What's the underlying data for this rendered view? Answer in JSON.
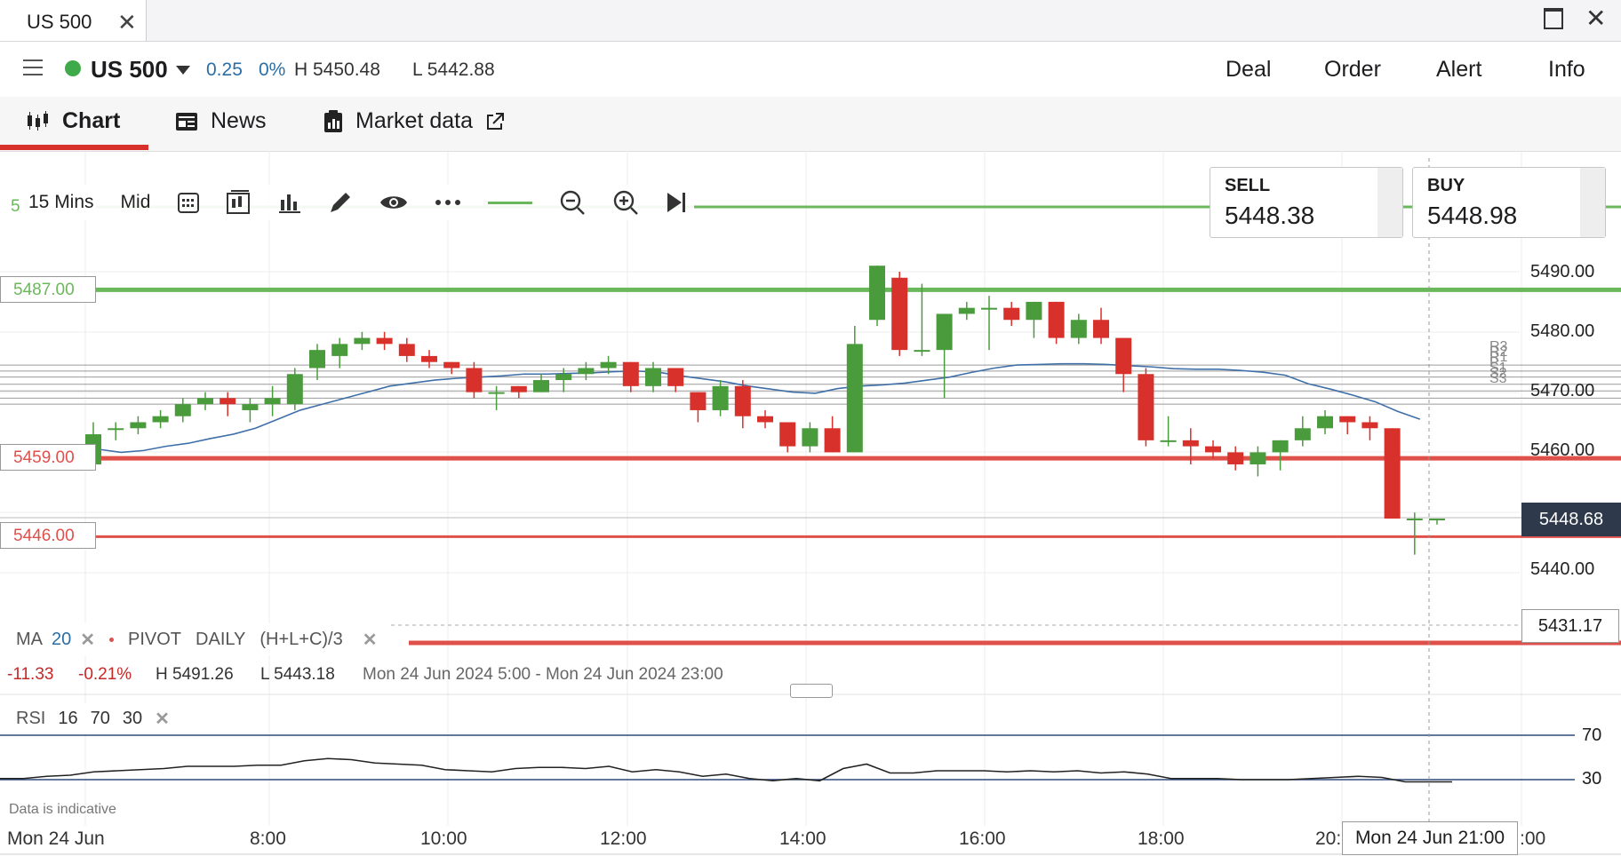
{
  "window": {
    "tab_title": "US 500",
    "close_glyph": "✕",
    "maximize_icon": "maximize-icon",
    "window_close_glyph": "✕"
  },
  "instrument": {
    "name": "US 500",
    "status_color": "#3faa4a",
    "change": "0.25",
    "change_pct": "0%",
    "high": "H 5450.48",
    "low": "L 5442.88"
  },
  "actions": [
    "Deal",
    "Order",
    "Alert",
    "Info"
  ],
  "tabs": [
    {
      "label": "Chart",
      "icon": "candles-icon",
      "active": true
    },
    {
      "label": "News",
      "icon": "news-icon"
    },
    {
      "label": "Market data",
      "icon": "clipboard-icon",
      "external_icon": "external-link-icon"
    }
  ],
  "toolbar": {
    "interval": "15 Mins",
    "price_type": "Mid",
    "icons": [
      "calendar-icon",
      "chart-type-icon",
      "indicators-icon",
      "draw-icon",
      "visibility-icon",
      "more-icon",
      "zoom-out-icon",
      "zoom-in-icon",
      "jump-to-latest-icon"
    ],
    "hidden_level_label": "5"
  },
  "prices": {
    "sell_label": "SELL",
    "sell": "5448.38",
    "buy_label": "BUY",
    "buy": "5448.98",
    "current": "5448.68",
    "low_marker": "5431.17"
  },
  "levels": {
    "upper": "5487.00",
    "mid": "5459.00",
    "lower": "5446.00",
    "green_color": "#6bb85c",
    "red_color": "#e0504a"
  },
  "pivot_labels": [
    "R3",
    "R2",
    "R1",
    "P",
    "S1",
    "S2",
    "S3"
  ],
  "indicator_legend": {
    "ma_label": "MA",
    "ma_period": "20",
    "pivot_label": "PIVOT",
    "pivot_period": "DAILY",
    "pivot_formula": "(H+L+C)/3",
    "remove_glyph": "✕"
  },
  "session_stats": {
    "change": "-11.33",
    "change_pct": "-0.21%",
    "high": "H 5491.26",
    "low": "L 5443.18",
    "range": "Mon 24 Jun 2024 5:00 - Mon 24 Jun 2024 23:00"
  },
  "rsi": {
    "label": "RSI",
    "period": "16",
    "upper": "70",
    "lower": "30",
    "remove_glyph": "✕",
    "values": [
      31,
      31,
      33,
      34,
      37,
      38,
      39,
      40,
      42,
      42,
      42,
      43,
      43,
      47,
      49,
      48,
      45,
      44,
      43,
      39,
      38,
      37,
      40,
      41,
      41,
      40,
      42,
      37,
      39,
      37,
      33,
      35,
      31,
      29,
      31,
      29,
      40,
      44,
      36,
      36,
      38,
      38,
      38,
      37,
      38,
      37,
      38,
      36,
      37,
      35,
      31,
      31,
      31,
      30,
      30,
      30,
      31,
      32,
      33,
      32,
      28,
      28,
      28
    ]
  },
  "footer": {
    "indicative": "Data is indicative",
    "crosshair_time": "Mon 24 Jun 21:00"
  },
  "chart_data": {
    "type": "candlestick",
    "interval": "15 Mins",
    "ylim": [
      5425,
      5510
    ],
    "y_ticks": [
      "5490.00",
      "5480.00",
      "5470.00",
      "5460.00",
      "5440.00"
    ],
    "x_labels": [
      "Mon 24 Jun",
      "8:00",
      "10:00",
      "12:00",
      "14:00",
      "16:00",
      "18:00",
      "20:",
      ":00"
    ],
    "candles": [
      {
        "o": 5458,
        "h": 5465,
        "l": 5457,
        "c": 5463
      },
      {
        "o": 5464,
        "h": 5465,
        "l": 5462,
        "c": 5464
      },
      {
        "o": 5464,
        "h": 5466,
        "l": 5463,
        "c": 5465
      },
      {
        "o": 5465,
        "h": 5467,
        "l": 5464,
        "c": 5466
      },
      {
        "o": 5466,
        "h": 5469,
        "l": 5465,
        "c": 5468
      },
      {
        "o": 5468,
        "h": 5470,
        "l": 5467,
        "c": 5469
      },
      {
        "o": 5469,
        "h": 5470,
        "l": 5466,
        "c": 5468
      },
      {
        "o": 5467,
        "h": 5469,
        "l": 5465,
        "c": 5468
      },
      {
        "o": 5468,
        "h": 5471,
        "l": 5466,
        "c": 5469
      },
      {
        "o": 5468,
        "h": 5474,
        "l": 5467,
        "c": 5473
      },
      {
        "o": 5474,
        "h": 5478,
        "l": 5472,
        "c": 5477
      },
      {
        "o": 5476,
        "h": 5479,
        "l": 5474,
        "c": 5478
      },
      {
        "o": 5478,
        "h": 5480,
        "l": 5477,
        "c": 5479
      },
      {
        "o": 5479,
        "h": 5480,
        "l": 5477,
        "c": 5478
      },
      {
        "o": 5478,
        "h": 5479,
        "l": 5475,
        "c": 5476
      },
      {
        "o": 5476,
        "h": 5477,
        "l": 5474,
        "c": 5475
      },
      {
        "o": 5475,
        "h": 5475,
        "l": 5473,
        "c": 5474
      },
      {
        "o": 5474,
        "h": 5475,
        "l": 5469,
        "c": 5470
      },
      {
        "o": 5470,
        "h": 5471,
        "l": 5467,
        "c": 5470
      },
      {
        "o": 5471,
        "h": 5471,
        "l": 5469,
        "c": 5470
      },
      {
        "o": 5470,
        "h": 5473,
        "l": 5470,
        "c": 5472
      },
      {
        "o": 5472,
        "h": 5474,
        "l": 5470,
        "c": 5473
      },
      {
        "o": 5473,
        "h": 5475,
        "l": 5472,
        "c": 5474
      },
      {
        "o": 5474,
        "h": 5476,
        "l": 5473,
        "c": 5475
      },
      {
        "o": 5475,
        "h": 5475,
        "l": 5470,
        "c": 5471
      },
      {
        "o": 5471,
        "h": 5475,
        "l": 5470,
        "c": 5474
      },
      {
        "o": 5474,
        "h": 5474,
        "l": 5470,
        "c": 5471
      },
      {
        "o": 5470,
        "h": 5470,
        "l": 5465,
        "c": 5467
      },
      {
        "o": 5467,
        "h": 5472,
        "l": 5466,
        "c": 5471
      },
      {
        "o": 5471,
        "h": 5472,
        "l": 5464,
        "c": 5466
      },
      {
        "o": 5466,
        "h": 5467,
        "l": 5464,
        "c": 5465
      },
      {
        "o": 5465,
        "h": 5465,
        "l": 5460,
        "c": 5461
      },
      {
        "o": 5461,
        "h": 5465,
        "l": 5460,
        "c": 5464
      },
      {
        "o": 5464,
        "h": 5466,
        "l": 5460,
        "c": 5460
      },
      {
        "o": 5460,
        "h": 5481,
        "l": 5460,
        "c": 5478
      },
      {
        "o": 5482,
        "h": 5491,
        "l": 5481,
        "c": 5491
      },
      {
        "o": 5489,
        "h": 5490,
        "l": 5476,
        "c": 5477
      },
      {
        "o": 5477,
        "h": 5488,
        "l": 5476,
        "c": 5477
      },
      {
        "o": 5477,
        "h": 5483,
        "l": 5469,
        "c": 5483
      },
      {
        "o": 5483,
        "h": 5485,
        "l": 5482,
        "c": 5484
      },
      {
        "o": 5484,
        "h": 5486,
        "l": 5477,
        "c": 5484
      },
      {
        "o": 5484,
        "h": 5485,
        "l": 5481,
        "c": 5482
      },
      {
        "o": 5482,
        "h": 5485,
        "l": 5479,
        "c": 5485
      },
      {
        "o": 5485,
        "h": 5485,
        "l": 5478,
        "c": 5479
      },
      {
        "o": 5479,
        "h": 5483,
        "l": 5478,
        "c": 5482
      },
      {
        "o": 5482,
        "h": 5484,
        "l": 5478,
        "c": 5479
      },
      {
        "o": 5479,
        "h": 5479,
        "l": 5470,
        "c": 5473
      },
      {
        "o": 5473,
        "h": 5474,
        "l": 5461,
        "c": 5462
      },
      {
        "o": 5462,
        "h": 5466,
        "l": 5461,
        "c": 5462
      },
      {
        "o": 5462,
        "h": 5464,
        "l": 5458,
        "c": 5461
      },
      {
        "o": 5461,
        "h": 5462,
        "l": 5459,
        "c": 5460
      },
      {
        "o": 5460,
        "h": 5461,
        "l": 5457,
        "c": 5458
      },
      {
        "o": 5458,
        "h": 5461,
        "l": 5456,
        "c": 5460
      },
      {
        "o": 5460,
        "h": 5462,
        "l": 5457,
        "c": 5462
      },
      {
        "o": 5462,
        "h": 5466,
        "l": 5461,
        "c": 5464
      },
      {
        "o": 5464,
        "h": 5467,
        "l": 5463,
        "c": 5466
      },
      {
        "o": 5466,
        "h": 5466,
        "l": 5463,
        "c": 5465
      },
      {
        "o": 5465,
        "h": 5466,
        "l": 5462,
        "c": 5464
      },
      {
        "o": 5464,
        "h": 5464,
        "l": 5449,
        "c": 5449
      },
      {
        "o": 5449,
        "h": 5450,
        "l": 5443,
        "c": 5449
      },
      {
        "o": 5449,
        "h": 5449,
        "l": 5448,
        "c": 5449
      }
    ],
    "ma20": [
      5460,
      5460.5,
      5460,
      5460.3,
      5461,
      5461.5,
      5462.3,
      5463,
      5464,
      5465.5,
      5467,
      5468,
      5469,
      5470,
      5471,
      5471.5,
      5472,
      5472.3,
      5472.5,
      5472.7,
      5473,
      5473,
      5473.1,
      5473.2,
      5473.4,
      5473.5,
      5473.3,
      5472.7,
      5472.2,
      5471.7,
      5471,
      5470.5,
      5470,
      5469.8,
      5470.6,
      5471,
      5471.2,
      5471.5,
      5472,
      5472.5,
      5473.3,
      5474,
      5474.5,
      5474.6,
      5474.7,
      5474.7,
      5474.6,
      5474.4,
      5474.2,
      5473.9,
      5473.8,
      5473.8,
      5473.6,
      5473.3,
      5472.8,
      5471.4,
      5470.5,
      5469.5,
      5468.4,
      5466.8,
      5465.5
    ],
    "pivots": {
      "R3": 5474.5,
      "R2": 5473.5,
      "R1": 5472.5,
      "P": 5471.3,
      "S1": 5470.2,
      "S2": 5469,
      "S3": 5468
    }
  }
}
